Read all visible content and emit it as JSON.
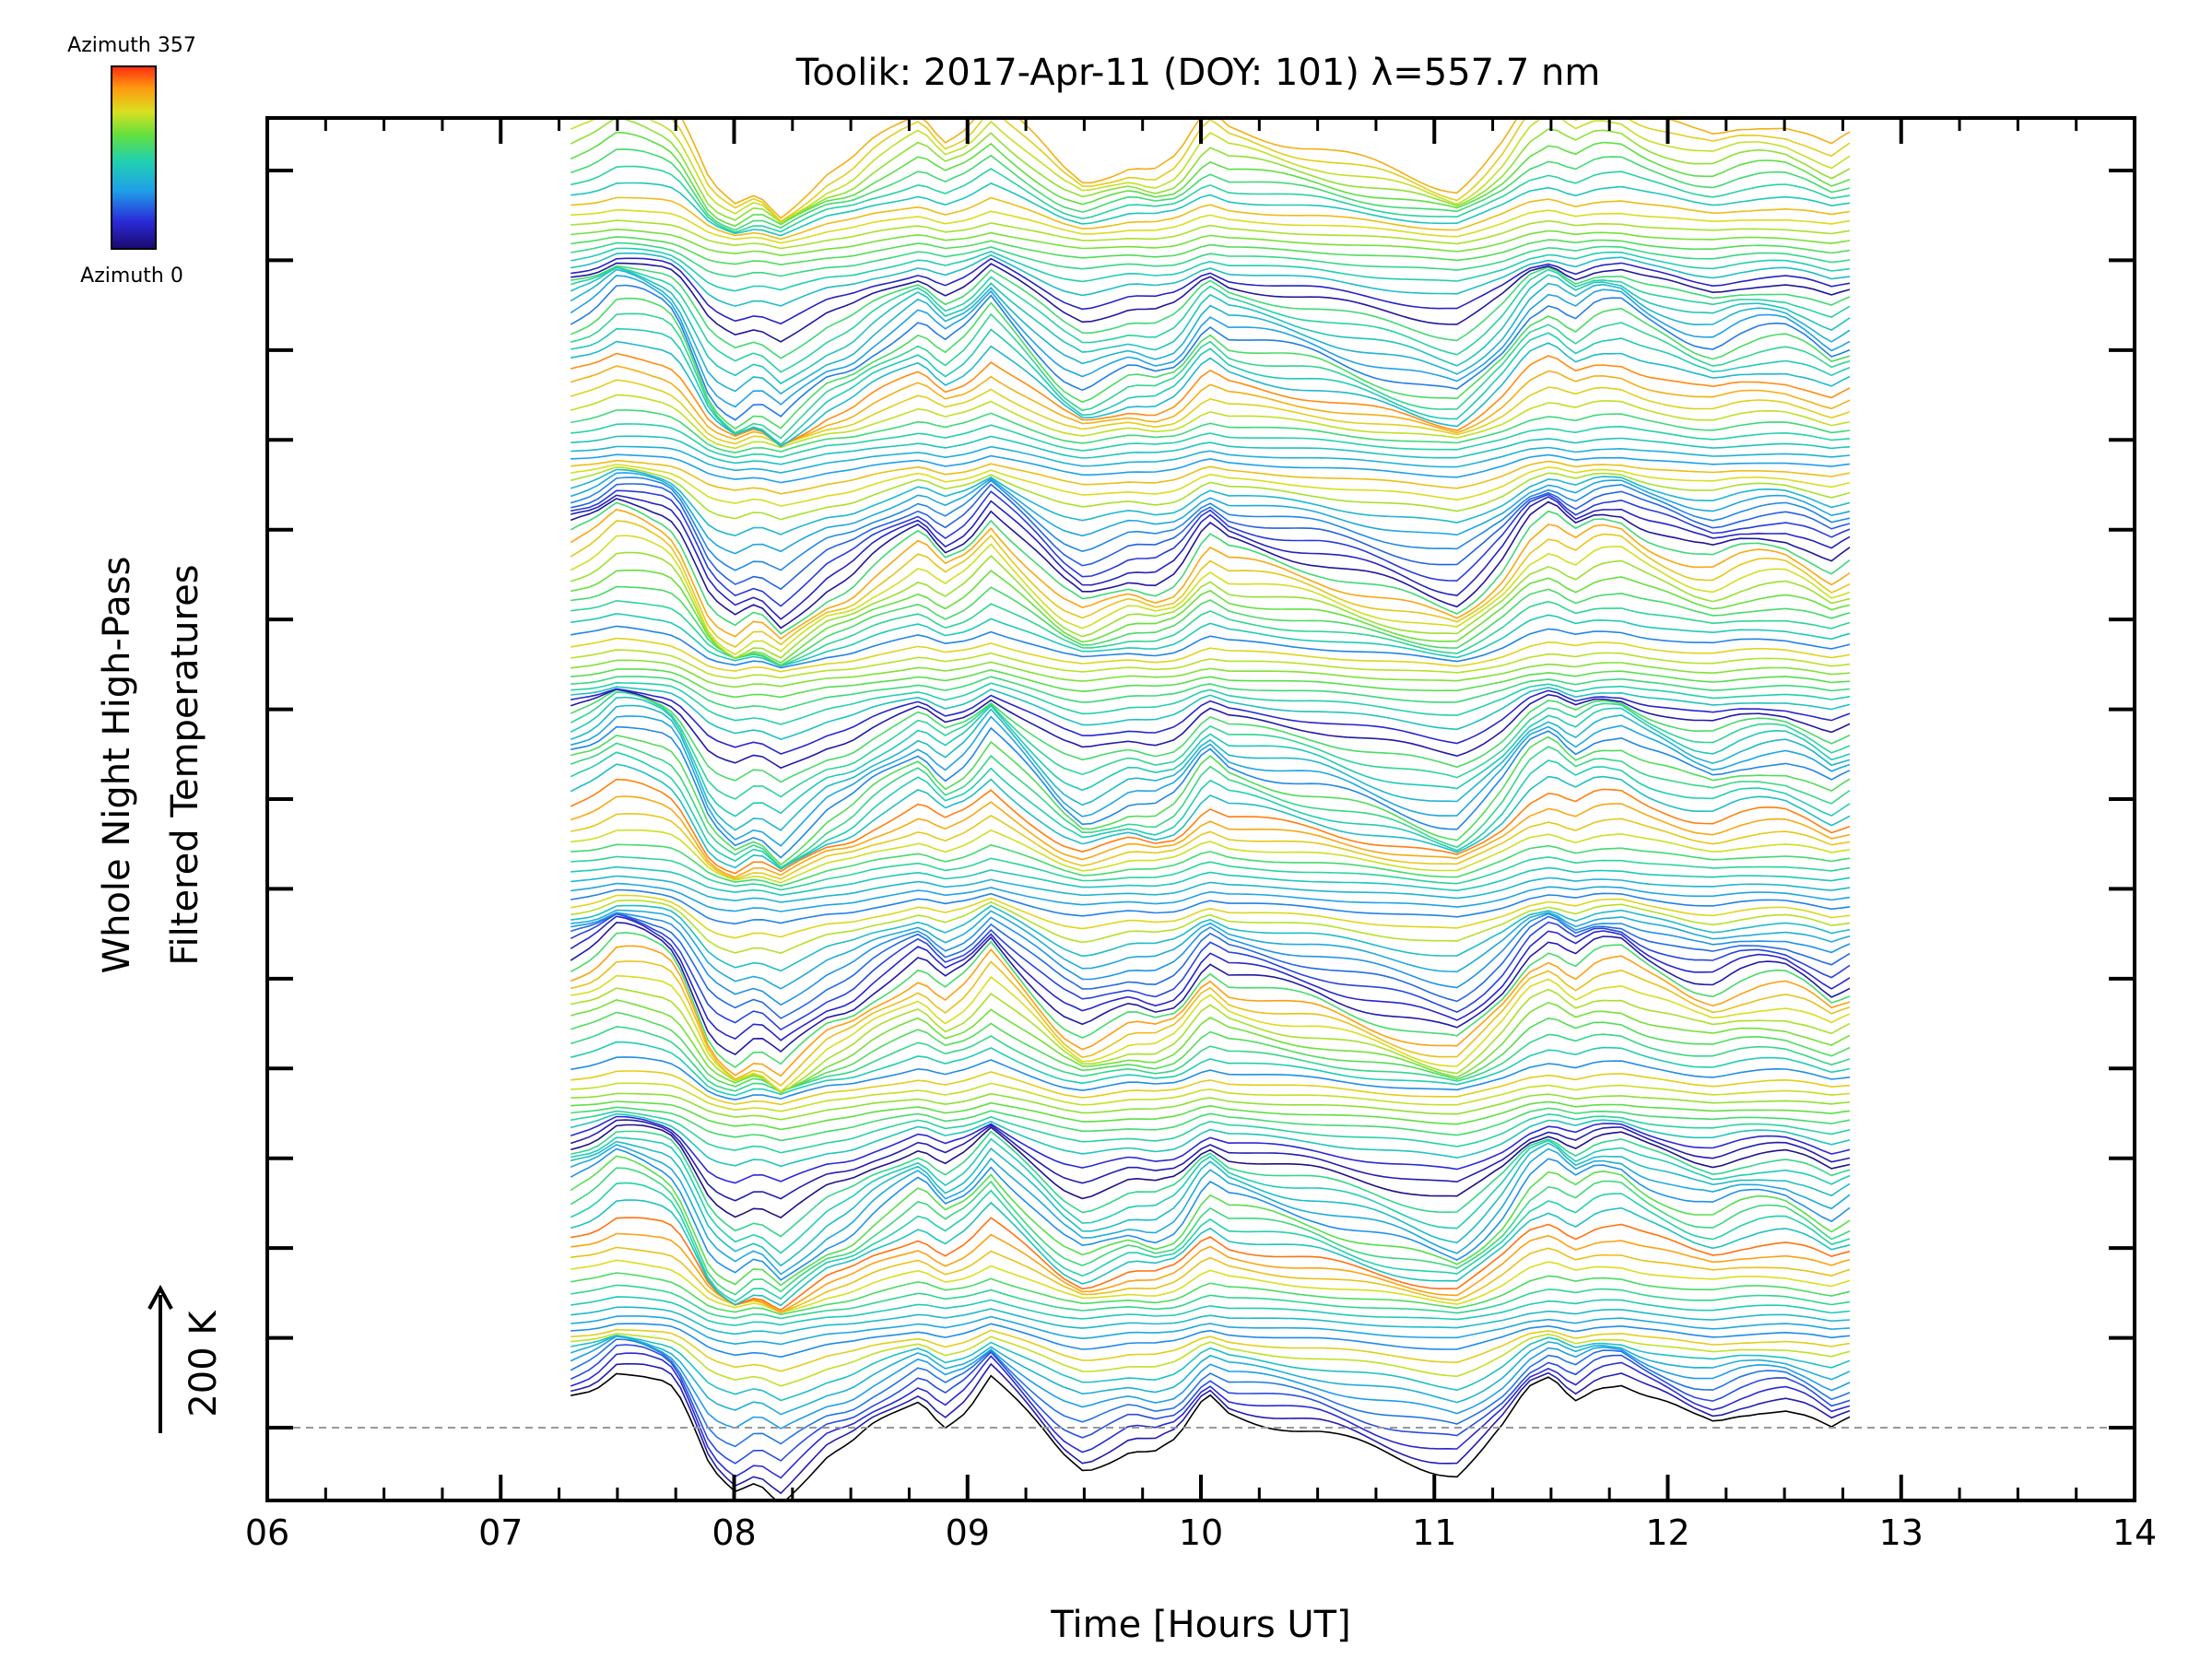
{
  "chart_data": {
    "type": "line",
    "title": "Toolik: 2017-Apr-11 (DOY: 101) λ=557.7 nm",
    "xlabel": "Time [Hours UT]",
    "ylabel_line1": "Whole Night High-Pass",
    "ylabel_line2": "Filtered Temperatures",
    "scale_label": "200 K",
    "xlim": [
      6,
      14
    ],
    "x_tick_labels": [
      "06",
      "07",
      "08",
      "09",
      "10",
      "11",
      "12",
      "13",
      "14"
    ],
    "y_major_ticks": 15,
    "colorbar": {
      "top_label": "Azimuth 357",
      "bottom_label": "Azimuth 0",
      "colormap": "rainbow",
      "min": 0,
      "max": 357
    },
    "series_count": 144,
    "baseline_label": "",
    "time_start": 7.3,
    "time_end": 12.78,
    "profile": {
      "times": [
        7.3,
        7.4,
        7.5,
        7.6,
        7.7,
        7.75,
        7.8,
        7.9,
        8.0,
        8.1,
        8.2,
        8.3,
        8.4,
        8.5,
        8.6,
        8.7,
        8.8,
        8.9,
        9.0,
        9.1,
        9.2,
        9.3,
        9.4,
        9.5,
        9.6,
        9.7,
        9.8,
        9.9,
        10.0,
        10.05,
        10.1,
        10.5,
        11.0,
        11.1,
        11.2,
        11.3,
        11.4,
        11.5,
        11.6,
        11.7,
        11.8,
        11.9,
        12.0,
        12.1,
        12.2,
        12.3,
        12.4,
        12.5,
        12.6,
        12.7,
        12.78
      ],
      "values": [
        0.6,
        0.8,
        1.2,
        1.1,
        0.9,
        0.7,
        0.2,
        -0.9,
        -1.3,
        -1.0,
        -1.4,
        -1.0,
        -0.6,
        -0.4,
        0.0,
        0.3,
        0.6,
        0.1,
        0.4,
        1.0,
        0.5,
        0.0,
        -0.5,
        -0.8,
        -0.6,
        -0.4,
        -0.5,
        -0.3,
        0.4,
        0.6,
        0.3,
        -0.1,
        -0.8,
        -0.9,
        -0.5,
        0.0,
        0.7,
        1.0,
        0.6,
        0.9,
        0.9,
        0.6,
        0.4,
        0.2,
        0.1,
        0.3,
        0.4,
        0.4,
        0.2,
        -0.1,
        0.1
      ]
    }
  }
}
